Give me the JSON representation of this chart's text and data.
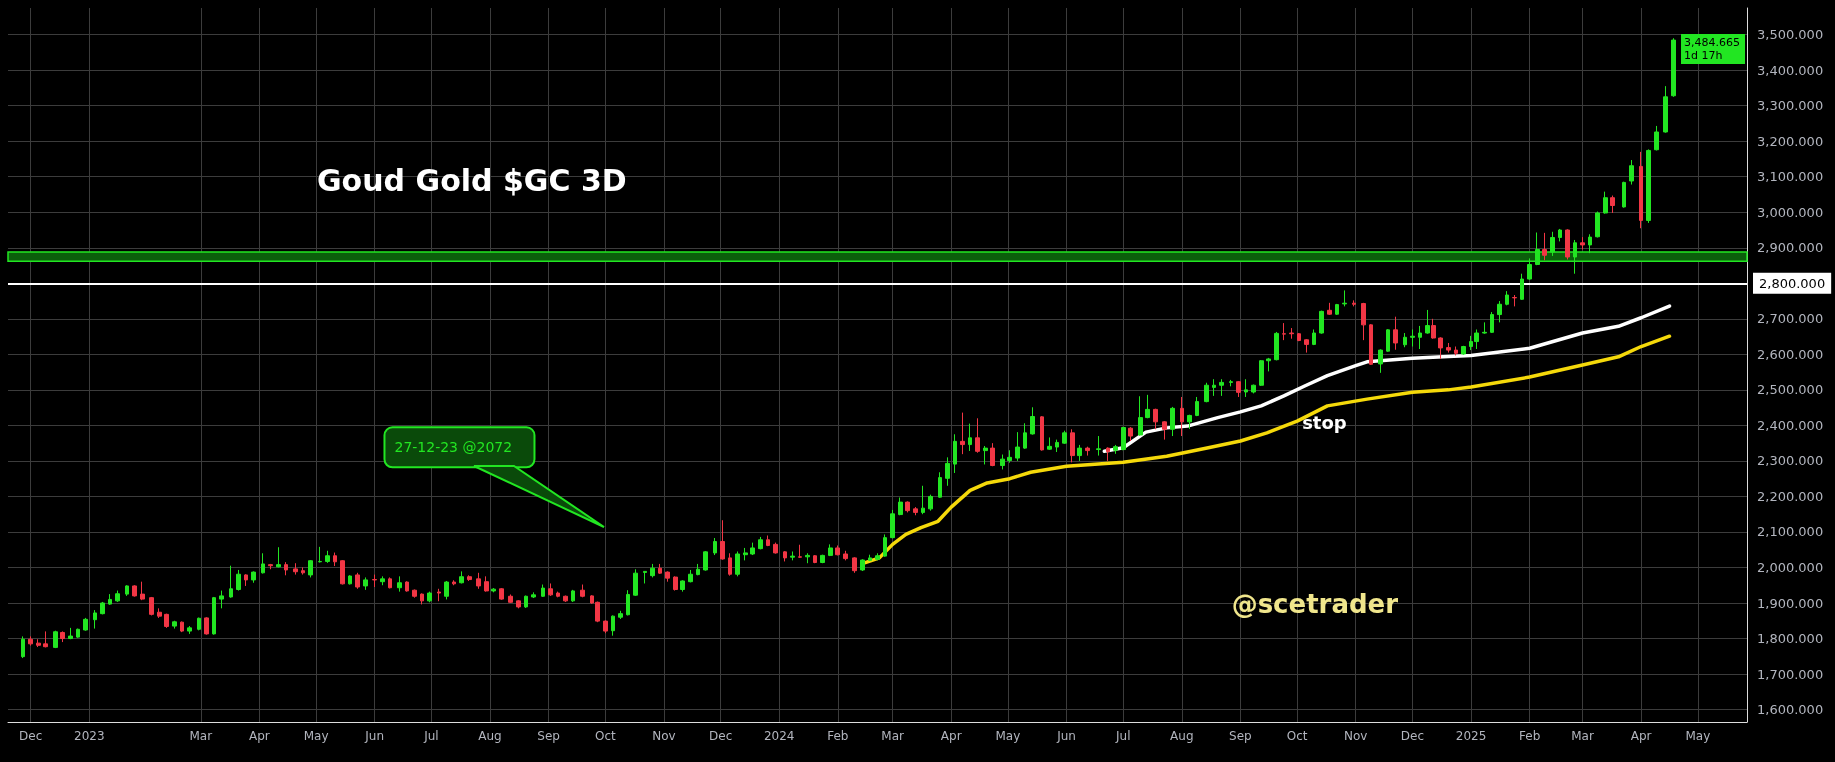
{
  "chart_data": {
    "type": "candlestick",
    "title": "Goud Gold $GC 3D",
    "xlim": [
      "2022-11-19",
      "2025-05-27"
    ],
    "xticks": [
      {
        "value": "2022-12-01",
        "label": "Dec"
      },
      {
        "value": "2023-01-01",
        "label": "2023"
      },
      {
        "value": "2023-03-01",
        "label": "Mar"
      },
      {
        "value": "2023-04-01",
        "label": "Apr"
      },
      {
        "value": "2023-05-01",
        "label": "May"
      },
      {
        "value": "2023-06-01",
        "label": "Jun"
      },
      {
        "value": "2023-07-01",
        "label": "Jul"
      },
      {
        "value": "2023-08-01",
        "label": "Aug"
      },
      {
        "value": "2023-09-01",
        "label": "Sep"
      },
      {
        "value": "2023-10-01",
        "label": "Oct"
      },
      {
        "value": "2023-11-01",
        "label": "Nov"
      },
      {
        "value": "2023-12-01",
        "label": "Dec"
      },
      {
        "value": "2024-01-01",
        "label": "2024"
      },
      {
        "value": "2024-02-01",
        "label": "Feb"
      },
      {
        "value": "2024-03-01",
        "label": "Mar"
      },
      {
        "value": "2024-04-01",
        "label": "Apr"
      },
      {
        "value": "2024-05-01",
        "label": "May"
      },
      {
        "value": "2024-06-01",
        "label": "Jun"
      },
      {
        "value": "2024-07-01",
        "label": "Jul"
      },
      {
        "value": "2024-08-01",
        "label": "Aug"
      },
      {
        "value": "2024-09-01",
        "label": "Sep"
      },
      {
        "value": "2024-10-01",
        "label": "Oct"
      },
      {
        "value": "2024-11-01",
        "label": "Nov"
      },
      {
        "value": "2024-12-01",
        "label": "Dec"
      },
      {
        "value": "2025-01-01",
        "label": "2025"
      },
      {
        "value": "2025-02-01",
        "label": "Feb"
      },
      {
        "value": "2025-03-01",
        "label": "Mar"
      },
      {
        "value": "2025-04-01",
        "label": "Apr"
      },
      {
        "value": "2025-05-01",
        "label": "May"
      }
    ],
    "ylim": [
      1565,
      3575
    ],
    "yticks": [
      {
        "value": 1600,
        "label": "1,600.000"
      },
      {
        "value": 1700,
        "label": "1,700.000"
      },
      {
        "value": 1800,
        "label": "1,800.000"
      },
      {
        "value": 1900,
        "label": "1,900.000"
      },
      {
        "value": 2000,
        "label": "2,000.000"
      },
      {
        "value": 2100,
        "label": "2,100.000"
      },
      {
        "value": 2200,
        "label": "2,200.000"
      },
      {
        "value": 2300,
        "label": "2,300.000"
      },
      {
        "value": 2400,
        "label": "2,400.000"
      },
      {
        "value": 2500,
        "label": "2,500.000"
      },
      {
        "value": 2600,
        "label": "2,600.000"
      },
      {
        "value": 2700,
        "label": "2,700.000"
      },
      {
        "value": 2800,
        "label": "2,800.000"
      },
      {
        "value": 2900,
        "label": "2,900.000"
      },
      {
        "value": 3000,
        "label": "3,000.000"
      },
      {
        "value": 3100,
        "label": "3,100.000"
      },
      {
        "value": 3200,
        "label": "3,200.000"
      },
      {
        "value": 3300,
        "label": "3,300.000"
      },
      {
        "value": 3400,
        "label": "3,400.000"
      },
      {
        "value": 3500,
        "label": "3,500.000"
      }
    ],
    "grid": true,
    "series": [
      {
        "type": "line",
        "color": "#f5d90a",
        "x": [
          "2024-02-14",
          "2024-02-23",
          "2024-03-01",
          "2024-03-08",
          "2024-03-16",
          "2024-03-25",
          "2024-04-01",
          "2024-04-11",
          "2024-04-20",
          "2024-05-02",
          "2024-05-13",
          "2024-06-01",
          "2024-07-01",
          "2024-07-24",
          "2024-08-15",
          "2024-09-01",
          "2024-09-15",
          "2024-10-01",
          "2024-10-17",
          "2024-11-07",
          "2024-12-01",
          "2024-12-20",
          "2025-01-01",
          "2025-02-01",
          "2025-03-01",
          "2025-03-20",
          "2025-04-01",
          "2025-04-16"
        ],
        "values": [
          2011,
          2027,
          2065,
          2093,
          2112,
          2130,
          2170,
          2217,
          2238,
          2250,
          2268,
          2285,
          2296,
          2313,
          2337,
          2356,
          2379,
          2412,
          2455,
          2474,
          2493,
          2500,
          2508,
          2536,
          2570,
          2593,
          2622,
          2651
        ]
      },
      {
        "type": "line",
        "color": "#ffffff",
        "x": [
          "2024-06-21",
          "2024-06-26",
          "2024-07-01",
          "2024-07-13",
          "2024-07-24",
          "2024-08-04",
          "2024-08-20",
          "2024-09-01",
          "2024-09-12",
          "2024-09-24",
          "2024-10-05",
          "2024-10-17",
          "2024-11-01",
          "2024-11-07",
          "2024-12-01",
          "2024-12-20",
          "2025-01-01",
          "2025-02-01",
          "2025-03-01",
          "2025-03-20",
          "2025-04-01",
          "2025-04-16"
        ],
        "values": [
          2327,
          2332,
          2337,
          2381,
          2393,
          2398,
          2422,
          2438,
          2455,
          2483,
          2511,
          2540,
          2568,
          2579,
          2589,
          2594,
          2597,
          2617,
          2660,
          2679,
          2703,
          2736
        ]
      },
      {
        "colors": [
          "#22e622",
          "#f23645",
          "#f23645",
          "#f23645",
          "#22e622",
          "#f23645",
          "#22e622",
          "#22e622",
          "#22e622",
          "#22e622",
          "#22e622",
          "#22e622",
          "#22e622",
          "#22e622",
          "#f23645",
          "#f23645",
          "#f23645",
          "#f23645",
          "#f23645",
          "#22e622",
          "#f23645",
          "#22e622",
          "#22e622",
          "#f23645",
          "#22e622",
          "#22e622",
          "#22e622",
          "#22e622",
          "#f23645",
          "#22e622",
          "#22e622",
          "#f23645",
          "#22e622",
          "#f23645",
          "#f23645",
          "#f23645",
          "#22e622",
          "#22e622",
          "#22e622",
          "#f23645",
          "#f23645",
          "#22e622",
          "#f23645",
          "#22e622",
          "#f23645",
          "#22e622",
          "#f23645",
          "#22e622",
          "#f23645",
          "#f23645",
          "#f23645",
          "#22e622",
          "#f23645",
          "#22e622",
          "#f23645",
          "#22e622",
          "#f23645",
          "#f23645",
          "#f23645",
          "#22e622",
          "#f23645",
          "#f23645",
          "#f23645",
          "#22e622",
          "#22e622",
          "#22e622",
          "#f23645",
          "#f23645",
          "#f23645",
          "#22e622",
          "#f23645",
          "#f23645",
          "#f23645",
          "#f23645",
          "#22e622",
          "#22e622",
          "#22e622",
          "#22e622",
          "#22e622",
          "#22e622",
          "#f23645",
          "#f23645",
          "#f23645",
          "#22e622",
          "#22e622",
          "#22e622",
          "#22e622",
          "#22e622",
          "#f23645",
          "#f23645",
          "#22e622",
          "#22e622",
          "#22e622",
          "#22e622",
          "#f23645",
          "#f23645",
          "#f23645",
          "#22e622",
          "#f23645",
          "#22e622",
          "#f23645",
          "#22e622",
          "#22e622",
          "#f23645",
          "#f23645",
          "#f23645",
          "#22e622",
          "#22e622",
          "#22e622",
          "#22e622",
          "#22e622",
          "#22e622",
          "#f23645",
          "#f23645",
          "#22e622",
          "#22e622",
          "#22e622",
          "#22e622",
          "#22e622",
          "#f23645",
          "#22e622",
          "#f23645",
          "#22e622",
          "#f23645",
          "#22e622",
          "#22e622",
          "#22e622",
          "#22e622",
          "#22e622",
          "#f23645",
          "#22e622",
          "#22e622",
          "#22e622",
          "#f23645",
          "#22e622",
          "#f23645",
          "#22e622",
          "#f23645",
          "#22e622",
          "#22e622",
          "#f23645",
          "#22e622",
          "#22e622",
          "#f23645",
          "#f23645",
          "#22e622",
          "#f23645",
          "#22e622",
          "#22e622",
          "#22e622",
          "#22e622",
          "#22e622",
          "#22e622",
          "#f23645",
          "#22e622",
          "#22e622",
          "#22e622",
          "#22e622",
          "#22e622",
          "#f23645",
          "#f23645",
          "#f23645",
          "#f23645",
          "#22e622",
          "#22e622",
          "#f23645",
          "#22e622",
          "#22e622",
          "#f23645",
          "#f23645",
          "#f23645",
          "#22e622",
          "#22e622",
          "#f23645",
          "#22e622",
          "#22e622",
          "#22e622",
          "#22e622",
          "#f23645",
          "#f23645",
          "#f23645",
          "#f23645",
          "#22e622",
          "#22e622",
          "#22e622",
          "#22e622",
          "#22e622",
          "#22e622",
          "#22e622",
          "#f23645",
          "#22e622",
          "#22e622",
          "#22e622",
          "#f23645",
          "#22e622",
          "#22e622",
          "#f23645",
          "#22e622",
          "#f23645",
          "#22e622",
          "#22e622",
          "#22e622",
          "#f23645",
          "#22e622",
          "#22e622",
          "#f23645",
          "#22e622",
          "#22e622",
          "#22e622",
          "#22e622"
        ],
        "x": [
          "2022-11-27",
          "2022-12-01",
          "2022-12-05",
          "2022-12-09",
          "2022-12-14",
          "2022-12-18",
          "2022-12-22",
          "2022-12-26",
          "2022-12-30",
          "2023-01-04",
          "2023-01-08",
          "2023-01-12",
          "2023-01-16",
          "2023-01-21",
          "2023-01-25",
          "2023-01-29",
          "2023-02-03",
          "2023-02-07",
          "2023-02-11",
          "2023-02-15",
          "2023-02-19",
          "2023-02-23",
          "2023-02-28",
          "2023-03-04",
          "2023-03-08",
          "2023-03-12",
          "2023-03-17",
          "2023-03-21",
          "2023-03-25",
          "2023-03-29",
          "2023-04-03",
          "2023-04-07",
          "2023-04-11",
          "2023-04-15",
          "2023-04-20",
          "2023-04-24",
          "2023-04-28",
          "2023-05-03",
          "2023-05-07",
          "2023-05-11",
          "2023-05-15",
          "2023-05-19",
          "2023-05-23",
          "2023-05-27",
          "2023-06-01",
          "2023-06-05",
          "2023-06-09",
          "2023-06-14",
          "2023-06-18",
          "2023-06-22",
          "2023-06-26",
          "2023-06-30",
          "2023-07-05",
          "2023-07-09",
          "2023-07-13",
          "2023-07-17",
          "2023-07-21",
          "2023-07-26",
          "2023-07-30",
          "2023-08-03",
          "2023-08-07",
          "2023-08-12",
          "2023-08-16",
          "2023-08-20",
          "2023-08-24",
          "2023-08-29",
          "2023-09-02",
          "2023-09-06",
          "2023-09-10",
          "2023-09-14",
          "2023-09-19",
          "2023-09-24",
          "2023-09-27",
          "2023-10-01",
          "2023-10-05",
          "2023-10-09",
          "2023-10-13",
          "2023-10-17",
          "2023-10-22",
          "2023-10-26",
          "2023-10-30",
          "2023-11-03",
          "2023-11-07",
          "2023-11-11",
          "2023-11-15",
          "2023-11-19",
          "2023-11-23",
          "2023-11-28",
          "2023-12-02",
          "2023-12-06",
          "2023-12-10",
          "2023-12-14",
          "2023-12-18",
          "2023-12-22",
          "2023-12-26",
          "2023-12-30",
          "2024-01-04",
          "2024-01-08",
          "2024-01-12",
          "2024-01-16",
          "2024-01-20",
          "2024-01-24",
          "2024-01-28",
          "2024-02-01",
          "2024-02-05",
          "2024-02-10",
          "2024-02-14",
          "2024-02-18",
          "2024-02-22",
          "2024-02-26",
          "2024-03-01",
          "2024-03-05",
          "2024-03-09",
          "2024-03-13",
          "2024-03-17",
          "2024-03-21",
          "2024-03-26",
          "2024-03-30",
          "2024-04-03",
          "2024-04-07",
          "2024-04-11",
          "2024-04-15",
          "2024-04-19",
          "2024-04-23",
          "2024-04-28",
          "2024-05-02",
          "2024-05-06",
          "2024-05-10",
          "2024-05-14",
          "2024-05-19",
          "2024-05-23",
          "2024-05-27",
          "2024-05-31",
          "2024-06-04",
          "2024-06-08",
          "2024-06-12",
          "2024-06-18",
          "2024-06-23",
          "2024-06-27",
          "2024-07-01",
          "2024-07-05",
          "2024-07-10",
          "2024-07-14",
          "2024-07-18",
          "2024-07-23",
          "2024-07-27",
          "2024-08-01",
          "2024-08-05",
          "2024-08-09",
          "2024-08-14",
          "2024-08-18",
          "2024-08-22",
          "2024-08-27",
          "2024-08-31",
          "2024-09-04",
          "2024-09-08",
          "2024-09-12",
          "2024-09-16",
          "2024-09-20",
          "2024-09-24",
          "2024-09-28",
          "2024-10-02",
          "2024-10-06",
          "2024-10-10",
          "2024-10-14",
          "2024-10-18",
          "2024-10-22",
          "2024-10-26",
          "2024-10-31",
          "2024-11-05",
          "2024-11-09",
          "2024-11-14",
          "2024-11-18",
          "2024-11-22",
          "2024-11-27",
          "2024-12-01",
          "2024-12-05",
          "2024-12-09",
          "2024-12-12",
          "2024-12-16",
          "2024-12-20",
          "2024-12-24",
          "2024-12-28",
          "2025-01-01",
          "2025-01-04",
          "2025-01-08",
          "2025-01-12",
          "2025-01-16",
          "2025-01-20",
          "2025-01-24",
          "2025-01-28",
          "2025-02-01",
          "2025-02-05",
          "2025-02-09",
          "2025-02-13",
          "2025-02-17",
          "2025-02-21",
          "2025-02-25",
          "2025-03-01",
          "2025-03-05",
          "2025-03-09",
          "2025-03-13",
          "2025-03-17",
          "2025-03-23",
          "2025-03-27",
          "2025-04-01",
          "2025-04-05",
          "2025-04-09",
          "2025-04-14",
          "2025-04-18"
        ],
        "ohlc": [
          [
            1749,
            1806,
            1745,
            1798
          ],
          [
            1798,
            1806,
            1780,
            1785
          ],
          [
            1787,
            1798,
            1776,
            1781
          ],
          [
            1785,
            1820,
            1775,
            1777
          ],
          [
            1775,
            1822,
            1773,
            1819
          ],
          [
            1817,
            1820,
            1790,
            1800
          ],
          [
            1800,
            1830,
            1798,
            1807
          ],
          [
            1804,
            1828,
            1802,
            1826
          ],
          [
            1824,
            1858,
            1822,
            1854
          ],
          [
            1853,
            1880,
            1828,
            1872
          ],
          [
            1870,
            1903,
            1868,
            1900
          ],
          [
            1897,
            1925,
            1895,
            1910
          ],
          [
            1906,
            1935,
            1903,
            1926
          ],
          [
            1925,
            1950,
            1920,
            1948
          ],
          [
            1948,
            1950,
            1918,
            1920
          ],
          [
            1925,
            1960,
            1908,
            1911
          ],
          [
            1915,
            1917,
            1865,
            1868
          ],
          [
            1874,
            1885,
            1858,
            1863
          ],
          [
            1868,
            1870,
            1830,
            1834
          ],
          [
            1835,
            1850,
            1828,
            1847
          ],
          [
            1846,
            1848,
            1818,
            1821
          ],
          [
            1821,
            1835,
            1813,
            1830
          ],
          [
            1826,
            1859,
            1823,
            1857
          ],
          [
            1858,
            1860,
            1811,
            1813
          ],
          [
            1813,
            1917,
            1811,
            1915
          ],
          [
            1911,
            1935,
            1885,
            1920
          ],
          [
            1917,
            2005,
            1915,
            1940
          ],
          [
            1938,
            1993,
            1935,
            1981
          ],
          [
            1979,
            1981,
            1948,
            1965
          ],
          [
            1965,
            1989,
            1957,
            1987
          ],
          [
            1985,
            2040,
            1983,
            2010
          ],
          [
            2008,
            2010,
            1995,
            2005
          ],
          [
            2002,
            2057,
            2000,
            2008
          ],
          [
            2008,
            2015,
            1978,
            1993
          ],
          [
            1996,
            2012,
            1980,
            1988
          ],
          [
            1991,
            2000,
            1980,
            1985
          ],
          [
            1979,
            2021,
            1972,
            2019
          ],
          [
            2016,
            2058,
            2014,
            2017
          ],
          [
            2017,
            2047,
            2013,
            2033
          ],
          [
            2033,
            2042,
            2004,
            2016
          ],
          [
            2019,
            2021,
            1952,
            1954
          ],
          [
            1954,
            1978,
            1952,
            1976
          ],
          [
            1979,
            1985,
            1940,
            1945
          ],
          [
            1948,
            1972,
            1937,
            1965
          ],
          [
            1966,
            1980,
            1945,
            1965
          ],
          [
            1960,
            1975,
            1950,
            1968
          ],
          [
            1968,
            1972,
            1941,
            1943
          ],
          [
            1943,
            1975,
            1932,
            1957
          ],
          [
            1959,
            1961,
            1932,
            1934
          ],
          [
            1936,
            1938,
            1915,
            1919
          ],
          [
            1925,
            1927,
            1896,
            1906
          ],
          [
            1906,
            1932,
            1902,
            1928
          ],
          [
            1931,
            1940,
            1905,
            1928
          ],
          [
            1919,
            1962,
            1910,
            1959
          ],
          [
            1959,
            1964,
            1950,
            1954
          ],
          [
            1957,
            1989,
            1955,
            1974
          ],
          [
            1974,
            1978,
            1962,
            1966
          ],
          [
            1968,
            1985,
            1940,
            1948
          ],
          [
            1960,
            1975,
            1932,
            1934
          ],
          [
            1934,
            1942,
            1930,
            1939
          ],
          [
            1940,
            1942,
            1909,
            1911
          ],
          [
            1919,
            1924,
            1900,
            1902
          ],
          [
            1906,
            1908,
            1885,
            1889
          ],
          [
            1889,
            1921,
            1886,
            1919
          ],
          [
            1917,
            1930,
            1914,
            1923
          ],
          [
            1919,
            1952,
            1917,
            1942
          ],
          [
            1940,
            1955,
            1920,
            1923
          ],
          [
            1928,
            1932,
            1916,
            1919
          ],
          [
            1919,
            1921,
            1903,
            1906
          ],
          [
            1906,
            1937,
            1903,
            1934
          ],
          [
            1936,
            1952,
            1916,
            1919
          ],
          [
            1920,
            1922,
            1898,
            1900
          ],
          [
            1902,
            1904,
            1846,
            1849
          ],
          [
            1849,
            1851,
            1815,
            1821
          ],
          [
            1822,
            1865,
            1808,
            1863
          ],
          [
            1860,
            1878,
            1855,
            1870
          ],
          [
            1867,
            1936,
            1865,
            1924
          ],
          [
            1922,
            1995,
            1920,
            1984
          ],
          [
            1986,
            1990,
            1955,
            1989
          ],
          [
            1977,
            2010,
            1972,
            1998
          ],
          [
            1998,
            2010,
            1982,
            1984
          ],
          [
            1987,
            1989,
            1960,
            1970
          ],
          [
            1973,
            1975,
            1935,
            1938
          ],
          [
            1938,
            1964,
            1932,
            1962
          ],
          [
            1960,
            1993,
            1958,
            1981
          ],
          [
            1980,
            2010,
            1978,
            1995
          ],
          [
            1993,
            2046,
            1991,
            2044
          ],
          [
            2041,
            2083,
            2035,
            2073
          ],
          [
            2073,
            2133,
            2022,
            2024
          ],
          [
            2027,
            2040,
            1977,
            1981
          ],
          [
            1981,
            2045,
            1975,
            2038
          ],
          [
            2036,
            2055,
            2020,
            2041
          ],
          [
            2038,
            2070,
            2035,
            2055
          ],
          [
            2053,
            2086,
            2051,
            2078
          ],
          [
            2078,
            2090,
            2060,
            2062
          ],
          [
            2065,
            2070,
            2039,
            2041
          ],
          [
            2044,
            2046,
            2017,
            2027
          ],
          [
            2029,
            2045,
            2020,
            2032
          ],
          [
            2030,
            2064,
            2027,
            2029
          ],
          [
            2030,
            2040,
            2012,
            2034
          ],
          [
            2033,
            2035,
            2012,
            2014
          ],
          [
            2014,
            2036,
            2012,
            2034
          ],
          [
            2034,
            2065,
            2032,
            2055
          ],
          [
            2055,
            2062,
            2034,
            2036
          ],
          [
            2038,
            2047,
            2020,
            2025
          ],
          [
            2027,
            2029,
            1985,
            1991
          ],
          [
            1993,
            2023,
            1990,
            2021
          ],
          [
            2020,
            2036,
            2018,
            2027
          ],
          [
            2023,
            2040,
            2020,
            2033
          ],
          [
            2032,
            2093,
            2030,
            2084
          ],
          [
            2084,
            2162,
            2082,
            2151
          ],
          [
            2149,
            2197,
            2147,
            2184
          ],
          [
            2184,
            2186,
            2155,
            2160
          ],
          [
            2165,
            2170,
            2147,
            2155
          ],
          [
            2155,
            2230,
            2150,
            2167
          ],
          [
            2165,
            2205,
            2160,
            2200
          ],
          [
            2198,
            2268,
            2196,
            2253
          ],
          [
            2251,
            2310,
            2230,
            2293
          ],
          [
            2291,
            2375,
            2266,
            2355
          ],
          [
            2355,
            2436,
            2319,
            2346
          ],
          [
            2346,
            2405,
            2328,
            2365
          ],
          [
            2365,
            2420,
            2323,
            2327
          ],
          [
            2329,
            2342,
            2290,
            2336
          ],
          [
            2336,
            2350,
            2285,
            2287
          ],
          [
            2287,
            2318,
            2276,
            2305
          ],
          [
            2301,
            2330,
            2295,
            2310
          ],
          [
            2308,
            2381,
            2300,
            2339
          ],
          [
            2336,
            2406,
            2334,
            2379
          ],
          [
            2376,
            2451,
            2374,
            2425
          ],
          [
            2424,
            2426,
            2329,
            2331
          ],
          [
            2333,
            2366,
            2331,
            2341
          ],
          [
            2339,
            2360,
            2325,
            2352
          ],
          [
            2350,
            2385,
            2348,
            2379
          ],
          [
            2379,
            2389,
            2296,
            2315
          ],
          [
            2315,
            2345,
            2300,
            2336
          ],
          [
            2336,
            2340,
            2315,
            2329
          ],
          [
            2332,
            2370,
            2315,
            2334
          ],
          [
            2336,
            2338,
            2300,
            2326
          ],
          [
            2330,
            2345,
            2320,
            2340
          ],
          [
            2332,
            2396,
            2330,
            2394
          ],
          [
            2392,
            2395,
            2356,
            2370
          ],
          [
            2373,
            2482,
            2371,
            2422
          ],
          [
            2422,
            2486,
            2420,
            2445
          ],
          [
            2445,
            2447,
            2389,
            2410
          ],
          [
            2410,
            2412,
            2360,
            2389
          ],
          [
            2389,
            2452,
            2370,
            2448
          ],
          [
            2448,
            2480,
            2370,
            2410
          ],
          [
            2410,
            2430,
            2390,
            2428
          ],
          [
            2428,
            2480,
            2426,
            2467
          ],
          [
            2467,
            2520,
            2465,
            2513
          ],
          [
            2507,
            2530,
            2483,
            2513
          ],
          [
            2513,
            2530,
            2483,
            2521
          ],
          [
            2521,
            2528,
            2510,
            2523
          ],
          [
            2523,
            2525,
            2480,
            2493
          ],
          [
            2494,
            2530,
            2480,
            2500
          ],
          [
            2494,
            2515,
            2490,
            2513
          ],
          [
            2513,
            2584,
            2511,
            2582
          ],
          [
            2582,
            2590,
            2552,
            2587
          ],
          [
            2585,
            2663,
            2583,
            2659
          ],
          [
            2658,
            2688,
            2640,
            2657
          ],
          [
            2660,
            2674,
            2644,
            2658
          ],
          [
            2658,
            2660,
            2637,
            2639
          ],
          [
            2641,
            2643,
            2605,
            2628
          ],
          [
            2628,
            2670,
            2626,
            2660
          ],
          [
            2660,
            2723,
            2658,
            2721
          ],
          [
            2724,
            2745,
            2711,
            2713
          ],
          [
            2713,
            2742,
            2711,
            2740
          ],
          [
            2742,
            2780,
            2735,
            2744
          ],
          [
            2744,
            2752,
            2735,
            2741
          ],
          [
            2743,
            2745,
            2640,
            2683
          ],
          [
            2683,
            2685,
            2570,
            2572
          ],
          [
            2573,
            2614,
            2548,
            2612
          ],
          [
            2609,
            2671,
            2607,
            2669
          ],
          [
            2669,
            2706,
            2613,
            2632
          ],
          [
            2627,
            2660,
            2620,
            2648
          ],
          [
            2648,
            2670,
            2622,
            2651
          ],
          [
            2648,
            2680,
            2615,
            2660
          ],
          [
            2660,
            2725,
            2658,
            2681
          ],
          [
            2681,
            2700,
            2644,
            2646
          ],
          [
            2646,
            2648,
            2587,
            2618
          ],
          [
            2619,
            2632,
            2605,
            2612
          ],
          [
            2612,
            2622,
            2597,
            2603
          ],
          [
            2601,
            2624,
            2599,
            2622
          ],
          [
            2622,
            2652,
            2612,
            2636
          ],
          [
            2636,
            2670,
            2615,
            2660
          ],
          [
            2660,
            2690,
            2658,
            2662
          ],
          [
            2662,
            2719,
            2660,
            2712
          ],
          [
            2712,
            2750,
            2690,
            2741
          ],
          [
            2741,
            2778,
            2738,
            2767
          ],
          [
            2760,
            2767,
            2735,
            2759
          ],
          [
            2755,
            2827,
            2753,
            2812
          ],
          [
            2812,
            2870,
            2810,
            2853
          ],
          [
            2853,
            2943,
            2851,
            2895
          ],
          [
            2895,
            2942,
            2865,
            2879
          ],
          [
            2888,
            2945,
            2877,
            2929
          ],
          [
            2929,
            2953,
            2918,
            2950
          ],
          [
            2950,
            2952,
            2867,
            2874
          ],
          [
            2874,
            2922,
            2827,
            2914
          ],
          [
            2914,
            2930,
            2895,
            2908
          ],
          [
            2908,
            2938,
            2885,
            2930
          ],
          [
            2931,
            3002,
            2929,
            2998
          ],
          [
            2998,
            3058,
            2996,
            3041
          ],
          [
            3041,
            3047,
            2998,
            3019
          ],
          [
            3015,
            3086,
            3013,
            3084
          ],
          [
            3088,
            3147,
            3078,
            3131
          ],
          [
            3129,
            3170,
            2955,
            2977
          ],
          [
            2977,
            3177,
            2970,
            3174
          ],
          [
            3176,
            3243,
            3174,
            3226
          ],
          [
            3226,
            3355,
            3224,
            3325
          ],
          [
            3328,
            3490,
            3325,
            3484.665
          ]
        ]
      }
    ],
    "ref_lines": [
      {
        "axis": "y",
        "value": 2800,
        "label": "2,800.000",
        "color": "#ffffff"
      }
    ],
    "bands": [
      {
        "axis": "y",
        "from": 2862,
        "to": 2888,
        "color": "#0b5e0b"
      }
    ],
    "annotations": [
      "27-12-23 @2072",
      "stop",
      "3,484.665\n1d 17h",
      "@scetrader"
    ]
  }
}
